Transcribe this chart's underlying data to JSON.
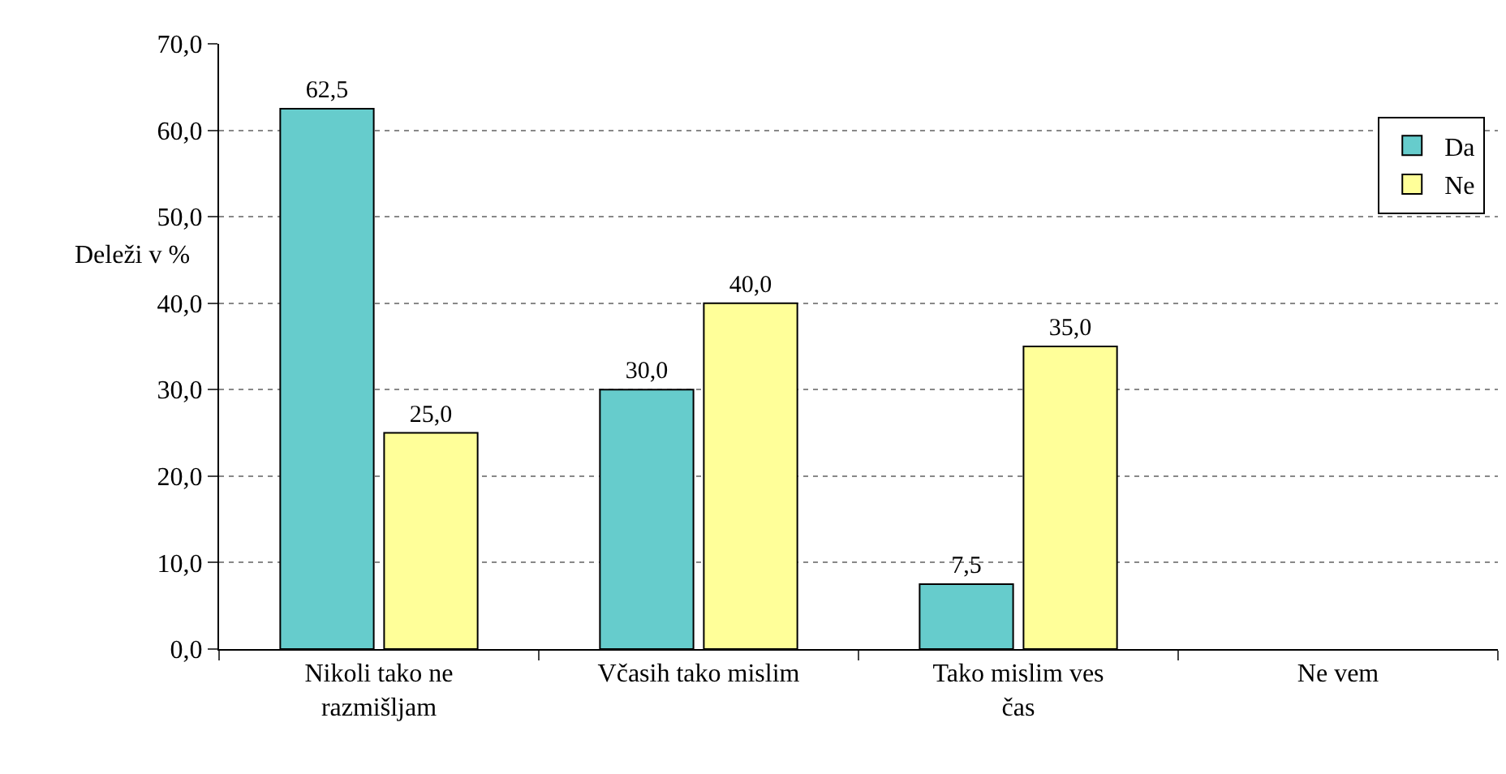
{
  "chart_data": {
    "type": "bar",
    "ylabel": "Deleži v %",
    "categories": [
      "Nikoli tako ne razmišljam",
      "Včasih tako mislim",
      "Tako mislim ves čas",
      "Ne vem"
    ],
    "series": [
      {
        "name": "Da",
        "color": "#66cccc",
        "values": [
          62.5,
          30.0,
          7.5,
          null
        ],
        "value_labels": [
          "62,5",
          "30,0",
          "7,5",
          null
        ]
      },
      {
        "name": "Ne",
        "color": "#ffff99",
        "values": [
          25.0,
          40.0,
          35.0,
          null
        ],
        "value_labels": [
          "25,0",
          "40,0",
          "35,0",
          null
        ]
      }
    ],
    "ylim": [
      0,
      70
    ],
    "yticks": [
      {
        "value": 0,
        "label": "0,0"
      },
      {
        "value": 10,
        "label": "10,0"
      },
      {
        "value": 20,
        "label": "20,0"
      },
      {
        "value": 30,
        "label": "30,0"
      },
      {
        "value": 40,
        "label": "40,0"
      },
      {
        "value": 50,
        "label": "50,0"
      },
      {
        "value": 60,
        "label": "60,0"
      },
      {
        "value": 70,
        "label": "70,0"
      }
    ],
    "grid": "y",
    "legend": "top right"
  }
}
